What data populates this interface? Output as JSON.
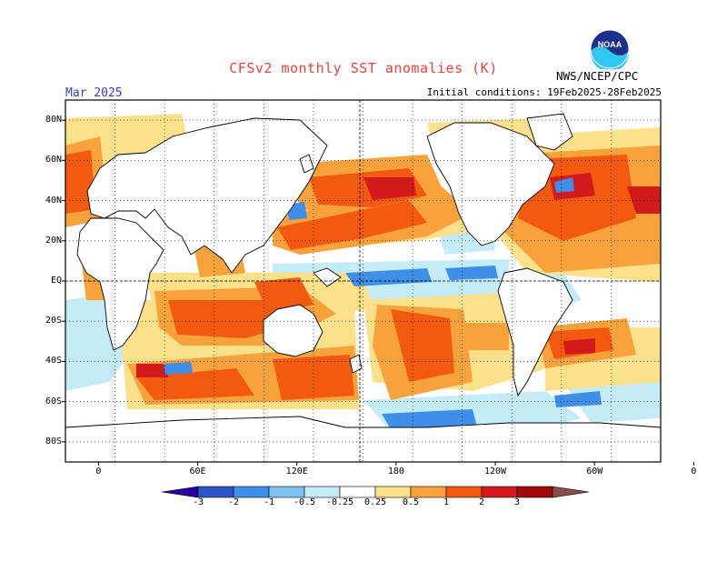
{
  "header": {
    "title": "CFSv2 monthly SST anomalies (K)",
    "title_color": "#e8413b",
    "month": "Mar 2025",
    "month_color": "#3b3bd8",
    "initial_conditions": "Initial conditions: 19Feb2025-28Feb2025",
    "agency": "NWS/NCEP/CPC",
    "logo": "noaa-logo"
  },
  "map": {
    "projection": "cylindrical-equidistant",
    "lon_range": [
      -20,
      340
    ],
    "lat_range": [
      -90,
      90
    ],
    "grid": true,
    "lat_labels": [
      "80N",
      "60N",
      "40N",
      "20N",
      "EQ",
      "20S",
      "40S",
      "60S",
      "80S"
    ],
    "lon_labels": [
      "0",
      "60E",
      "120E",
      "180",
      "120W",
      "60W",
      "0"
    ]
  },
  "colorbar": {
    "ticks": [
      "-3",
      "-2",
      "-1",
      "-0.5",
      "-0.25",
      "0.25",
      "0.5",
      "1",
      "2",
      "3"
    ],
    "colors": [
      "#2b00a0",
      "#2d55c8",
      "#3f8fe8",
      "#7ec3f0",
      "#c4ecf8",
      "#ffffff",
      "#fde08a",
      "#f8a23c",
      "#f25a10",
      "#d21a1a",
      "#9c0a0a",
      "#8c4c4c"
    ]
  }
}
